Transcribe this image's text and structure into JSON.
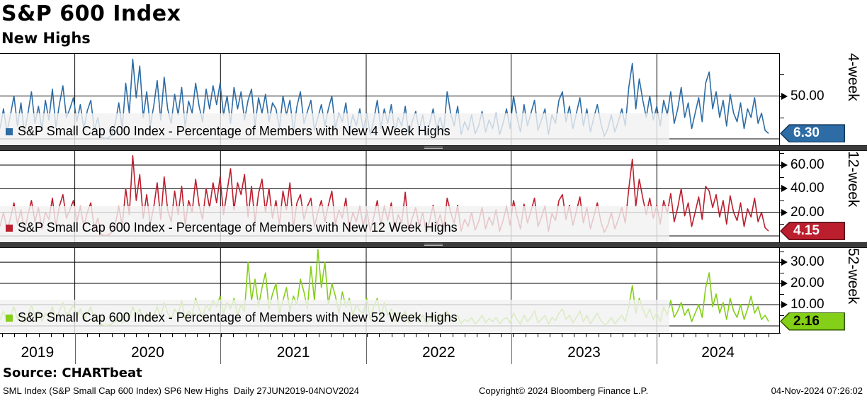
{
  "chart_data": {
    "type": "line",
    "title": "S&P 600 Index",
    "subtitle": "New Highs",
    "x_axis": {
      "year_labels": [
        "2019",
        "2020",
        "2021",
        "2022",
        "2023",
        "2024"
      ],
      "year_boundaries_frac": [
        0.096,
        0.283,
        0.47,
        0.656,
        0.843
      ],
      "minor_tick_count": 64,
      "range": "27JUN2019-04NOV2024"
    },
    "panels": [
      {
        "name": "4-week",
        "legend": "S&P Small Cap 600 Index - Percentage of Members with New 4 Week Highs",
        "color": "#2d6ca5",
        "tag": {
          "value": "6.30",
          "bg": "#2d6ca5",
          "fg": "#ffffff",
          "border": "#14395c"
        },
        "ylim": [
          0,
          100
        ],
        "yticks": [
          {
            "v": 50,
            "label": "50.00"
          }
        ],
        "minor_yticks": [
          25,
          75
        ],
        "last": 6.3,
        "values": [
          12,
          35,
          8,
          28,
          50,
          15,
          42,
          6,
          30,
          55,
          18,
          38,
          10,
          45,
          22,
          58,
          13,
          40,
          62,
          25,
          35,
          48,
          20,
          40,
          12,
          33,
          45,
          10,
          25,
          2,
          0.5,
          1,
          5,
          18,
          42,
          12,
          65,
          30,
          93,
          48,
          85,
          25,
          55,
          15,
          38,
          68,
          22,
          72,
          35,
          18,
          52,
          28,
          60,
          14,
          44,
          30,
          65,
          38,
          20,
          58,
          35,
          62,
          40,
          65,
          28,
          50,
          18,
          60,
          35,
          55,
          22,
          45,
          58,
          15,
          48,
          30,
          52,
          20,
          42,
          35,
          12,
          50,
          28,
          45,
          8,
          38,
          55,
          18,
          32,
          45,
          10,
          25,
          40,
          15,
          35,
          50,
          12,
          30,
          20,
          42,
          8,
          28,
          15,
          35,
          10,
          30,
          5,
          22,
          45,
          12,
          35,
          18,
          40,
          8,
          25,
          15,
          38,
          6,
          20,
          32,
          10,
          28,
          4,
          18,
          35,
          12,
          25,
          8,
          55,
          30,
          15,
          38,
          5,
          20,
          10,
          28,
          6,
          15,
          32,
          8,
          22,
          12,
          30,
          5,
          18,
          35,
          12,
          50,
          25,
          8,
          40,
          15,
          30,
          45,
          10,
          22,
          35,
          5,
          28,
          18,
          45,
          55,
          20,
          38,
          12,
          30,
          48,
          15,
          35,
          8,
          25,
          40,
          18,
          3,
          12,
          28,
          8,
          20,
          35,
          15,
          60,
          88,
          35,
          70,
          45,
          25,
          50,
          22,
          38,
          15,
          45,
          28,
          55,
          18,
          35,
          60,
          25,
          42,
          12,
          30,
          48,
          20,
          65,
          78,
          35,
          55,
          25,
          45,
          15,
          52,
          30,
          20,
          42,
          12,
          35,
          25,
          48,
          18,
          30,
          10,
          6.3
        ]
      },
      {
        "name": "12-week",
        "legend": "S&P Small Cap 600 Index - Percentage of Members with New 12 Week Highs",
        "color": "#bb1f2e",
        "tag": {
          "value": "4.15",
          "bg": "#bb1f2e",
          "fg": "#ffffff",
          "border": "#5e0d16"
        },
        "ylim": [
          0,
          72
        ],
        "yticks": [
          {
            "v": 20,
            "label": "20.00"
          },
          {
            "v": 40,
            "label": "40.00"
          },
          {
            "v": 60,
            "label": "60.00"
          }
        ],
        "minor_yticks": [
          10,
          30,
          50,
          70
        ],
        "last": 4.15,
        "values": [
          8,
          20,
          5,
          15,
          28,
          10,
          22,
          4,
          18,
          30,
          12,
          24,
          6,
          20,
          14,
          32,
          8,
          25,
          35,
          15,
          22,
          30,
          12,
          25,
          8,
          20,
          28,
          6,
          15,
          1,
          0.3,
          0.8,
          3,
          10,
          25,
          8,
          40,
          18,
          68,
          30,
          52,
          15,
          35,
          10,
          24,
          45,
          14,
          50,
          22,
          12,
          38,
          18,
          42,
          9,
          30,
          20,
          48,
          26,
          14,
          40,
          24,
          45,
          28,
          50,
          18,
          38,
          57,
          22,
          45,
          35,
          52,
          16,
          42,
          12,
          36,
          48,
          20,
          40,
          15,
          30,
          10,
          38,
          22,
          45,
          7,
          28,
          35,
          14,
          25,
          32,
          8,
          20,
          30,
          12,
          26,
          38,
          10,
          22,
          15,
          32,
          6,
          20,
          12,
          25,
          8,
          22,
          4,
          16,
          30,
          9,
          25,
          13,
          28,
          6,
          18,
          11,
          37,
          5,
          15,
          24,
          8,
          20,
          3,
          13,
          26,
          9,
          18,
          6,
          32,
          20,
          11,
          26,
          4,
          14,
          8,
          20,
          5,
          12,
          24,
          6,
          16,
          9,
          22,
          4,
          13,
          25,
          9,
          30,
          17,
          6,
          27,
          11,
          21,
          32,
          8,
          16,
          25,
          4,
          19,
          13,
          30,
          35,
          14,
          26,
          9,
          21,
          33,
          11,
          24,
          6,
          17,
          28,
          12,
          3,
          9,
          20,
          6,
          14,
          24,
          11,
          40,
          65,
          25,
          48,
          32,
          18,
          32,
          15,
          26,
          10,
          30,
          19,
          36,
          12,
          24,
          40,
          17,
          28,
          8,
          20,
          33,
          14,
          42,
          38,
          24,
          35,
          16,
          30,
          10,
          34,
          20,
          13,
          28,
          8,
          23,
          16,
          32,
          12,
          20,
          7,
          4.15
        ]
      },
      {
        "name": "52-week",
        "legend": "S&P Small Cap 600 Index - Percentage of Members with New 52 Week Highs",
        "color": "#84cf17",
        "tag": {
          "value": "2.16",
          "bg": "#84cf17",
          "fg": "#000000",
          "border": "#2f5a00"
        },
        "ylim": [
          0,
          36.7
        ],
        "yticks": [
          {
            "v": 10,
            "label": "10.00"
          },
          {
            "v": 20,
            "label": "20.00"
          },
          {
            "v": 30,
            "label": "30.00"
          }
        ],
        "minor_yticks": [
          5,
          15,
          25,
          35
        ],
        "last": 2.16,
        "values": [
          3,
          7,
          2,
          5,
          9,
          3,
          6,
          1.5,
          5,
          10,
          4,
          7,
          2,
          6,
          4,
          9,
          2.5,
          7,
          11,
          5,
          7,
          10,
          4,
          8,
          3,
          6,
          9,
          2,
          5,
          0.5,
          0.2,
          0.3,
          1,
          2,
          4,
          1.5,
          6,
          3,
          9,
          5,
          8,
          2.5,
          6,
          3,
          5,
          9,
          4,
          11,
          6,
          3,
          8,
          5,
          12,
          3,
          7,
          5,
          13,
          8,
          4,
          10,
          7,
          12,
          9,
          14,
          6,
          11,
          8,
          13,
          5,
          10,
          7,
          30,
          12,
          22,
          9,
          18,
          25,
          8,
          15,
          20,
          6,
          12,
          18,
          7,
          14,
          10,
          22,
          16,
          8,
          28,
          12,
          36,
          18,
          30,
          10,
          20,
          14,
          6,
          16,
          9,
          13,
          5,
          10,
          7,
          6,
          13,
          3,
          9,
          13,
          4,
          11,
          5,
          8,
          2,
          6,
          3.5,
          7,
          1.5,
          4,
          6,
          2,
          5,
          1,
          3,
          6,
          2,
          4.5,
          1.5,
          7,
          4,
          2,
          5,
          1,
          3,
          2,
          4,
          1,
          2.5,
          5,
          1.5,
          3.5,
          2,
          4,
          1,
          3,
          4,
          1.5,
          6,
          3,
          0.8,
          5,
          2,
          4,
          7,
          1.5,
          3,
          5,
          0.8,
          4,
          2.5,
          6,
          8,
          3,
          5,
          1.5,
          4,
          7,
          2,
          5,
          1,
          3.5,
          6,
          2.5,
          0.5,
          1.5,
          4,
          1,
          3,
          5,
          2,
          9,
          19,
          6,
          13,
          8,
          4,
          8,
          3,
          6,
          2,
          9,
          5,
          12,
          4,
          7,
          11,
          5,
          8,
          2,
          6,
          10,
          4,
          18,
          25,
          9,
          15,
          6,
          11,
          3,
          13,
          7,
          4,
          10,
          3,
          8,
          14,
          6,
          9,
          3,
          5,
          2.16
        ]
      }
    ]
  },
  "footer": {
    "source": "Source: CHARTbeat",
    "description": "SML Index (S&P Small Cap 600 Index) SP6 New Highs  Daily 27JUN2019-04NOV2024",
    "copyright": "Copyright© 2024 Bloomberg Finance L.P.",
    "timestamp": "04-Nov-2024 07:26:02"
  }
}
